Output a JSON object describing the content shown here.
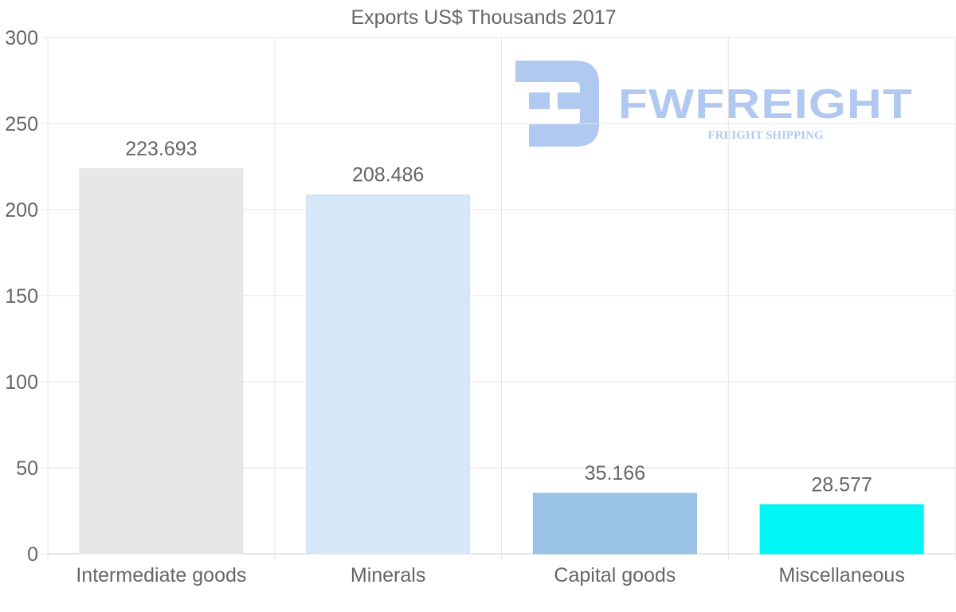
{
  "chart_data": {
    "type": "bar",
    "title": "Exports US$ Thousands 2017",
    "categories": [
      "Intermediate goods",
      "Minerals",
      "Capital goods",
      "Miscellaneous"
    ],
    "values": [
      223.693,
      208.486,
      35.166,
      28.577
    ],
    "value_labels": [
      "223.693",
      "208.486",
      "35.166",
      "28.577"
    ],
    "bar_colors": [
      "#e7e7e7",
      "#d6e7f8",
      "#9ac3e6",
      "#00f7f5"
    ],
    "bar_border_colors": [
      "#e3e3e3",
      "#cfe1f3",
      "#93bbdc",
      "#00ecec"
    ],
    "ylim": [
      0,
      300
    ],
    "yticks": [
      0,
      50,
      100,
      150,
      200,
      250,
      300
    ],
    "xlabel": "",
    "ylabel": "",
    "grid": true,
    "text_color": "#666666",
    "grid_color": "#e5e5e5"
  },
  "watermark": {
    "brand": "FWFREIGHT",
    "tagline": "FREIGHT SHIPPING",
    "color": "#a9c4ef"
  }
}
